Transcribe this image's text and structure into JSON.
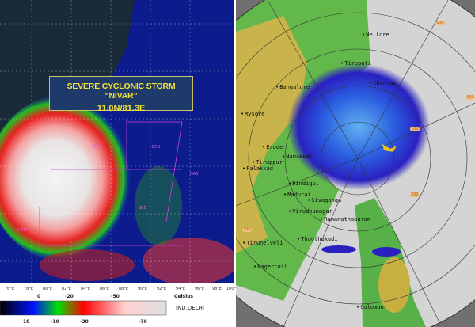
{
  "satellite": {
    "title": "SEVERE CYCLONIC STORM “NIVAR”",
    "position": "11.0N/81.3E",
    "longitude_ticks": [
      "76°E",
      "78°E",
      "80°E",
      "82°E",
      "84°E",
      "86°E",
      "88°E",
      "90°E",
      "92°E",
      "94°E",
      "96°E",
      "98°E",
      "100°E"
    ],
    "region_labels": [
      "WCB",
      "ECB",
      "NAS",
      "SBB",
      "COM"
    ],
    "colorbar": {
      "top_labels": [
        "0",
        "-20",
        "-50"
      ],
      "bottom_labels": [
        "10",
        "-10",
        "-30",
        "-70"
      ],
      "unit": "Celsius",
      "source": "IND,DELHI"
    }
  },
  "radar": {
    "cities": [
      "Nellore",
      "Tirupati",
      "Bangalore",
      "Chennai",
      "Mysore",
      "Erode",
      "Namakkal",
      "Tiruppur",
      "Palakkad",
      "Dindigul",
      "Madurai",
      "Sivaganga",
      "Virudhunagar",
      "Ramanathapuram",
      "Thoothukudi",
      "Tirunelveli",
      "Nagercoil",
      "Colombo"
    ],
    "range_rings": [
      "100",
      "200",
      "300",
      "400",
      "500"
    ]
  }
}
